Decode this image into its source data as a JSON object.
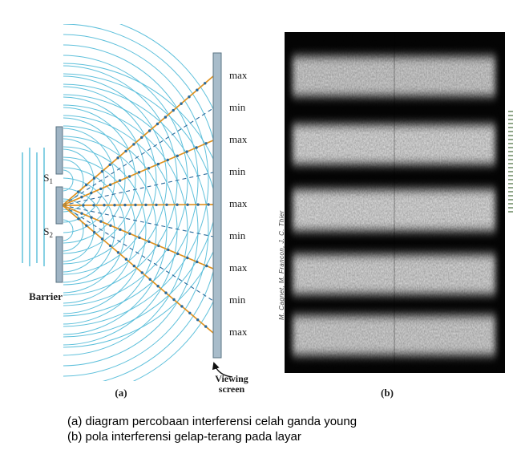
{
  "colors": {
    "wave": "#55bdd9",
    "ray_max": "#e0921f",
    "ray_min": "#2b6a9b",
    "barrier_fill": "#9fb4c4",
    "screen_fill": "#a8bcca"
  },
  "panel_a": {
    "label": "(a)",
    "slit1": {
      "base": "S",
      "sub": "1"
    },
    "slit2": {
      "base": "S",
      "sub": "2"
    },
    "barrier_label": "Barrier",
    "screen_label": "Viewing screen",
    "fringe_labels": [
      "max",
      "min",
      "max",
      "min",
      "max",
      "min",
      "max",
      "min",
      "max"
    ]
  },
  "panel_b": {
    "label": "(b)",
    "credit": "M. Cagnet, M. Francon, J. C. Thier"
  },
  "caption": {
    "line1": "(a) diagram percobaan interferensi celah ganda young",
    "line2": "(b) pola interferensi gelap-terang pada layar"
  }
}
